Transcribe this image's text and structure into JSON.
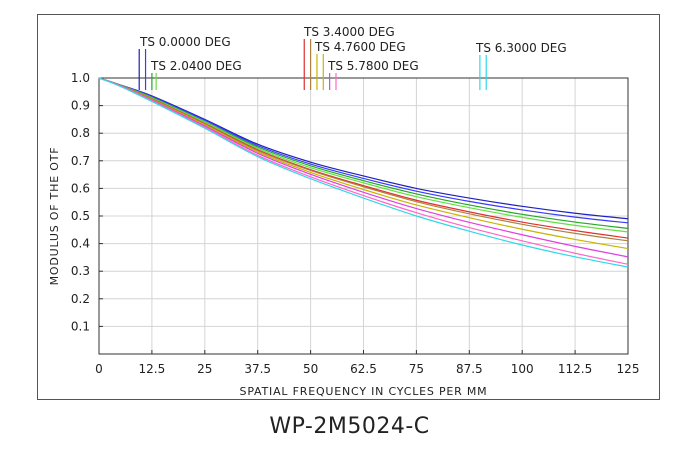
{
  "chart_data": {
    "type": "line",
    "title": "",
    "xlabel": "SPATIAL FREQUENCY IN CYCLES PER MM",
    "ylabel": "MODULUS OF THE OTF",
    "xlim": [
      0,
      125
    ],
    "ylim": [
      0,
      1
    ],
    "x_ticks": [
      "0",
      "12.5",
      "25",
      "37.5",
      "50",
      "62.5",
      "75",
      "87.5",
      "100",
      "112.5",
      "125"
    ],
    "y_ticks": [
      "0.1",
      "0.2",
      "0.3",
      "0.4",
      "0.5",
      "0.6",
      "0.7",
      "0.8",
      "0.9",
      "1.0"
    ],
    "grid": true,
    "x": [
      0,
      5,
      12.5,
      25,
      37.5,
      50,
      62.5,
      75,
      87.5,
      100,
      112.5,
      125
    ],
    "series": [
      {
        "color": "#1f1fbf",
        "values": [
          1.0,
          0.975,
          0.935,
          0.85,
          0.76,
          0.695,
          0.645,
          0.6,
          0.565,
          0.535,
          0.51,
          0.49
        ]
      },
      {
        "color": "#3a3aff",
        "values": [
          1.0,
          0.975,
          0.933,
          0.847,
          0.755,
          0.688,
          0.636,
          0.59,
          0.553,
          0.522,
          0.496,
          0.475
        ]
      },
      {
        "color": "#22aa22",
        "values": [
          1.0,
          0.974,
          0.93,
          0.842,
          0.75,
          0.682,
          0.628,
          0.58,
          0.54,
          0.506,
          0.478,
          0.455
        ]
      },
      {
        "color": "#66dd44",
        "values": [
          1.0,
          0.974,
          0.928,
          0.84,
          0.745,
          0.675,
          0.62,
          0.57,
          0.53,
          0.495,
          0.466,
          0.442
        ]
      },
      {
        "color": "#e03030",
        "values": [
          1.0,
          0.973,
          0.925,
          0.835,
          0.74,
          0.668,
          0.61,
          0.557,
          0.515,
          0.478,
          0.447,
          0.42
        ]
      },
      {
        "color": "#b08040",
        "values": [
          1.0,
          0.973,
          0.924,
          0.833,
          0.737,
          0.665,
          0.606,
          0.552,
          0.508,
          0.47,
          0.437,
          0.41
        ]
      },
      {
        "color": "#c8b400",
        "values": [
          1.0,
          0.972,
          0.922,
          0.83,
          0.732,
          0.658,
          0.596,
          0.54,
          0.494,
          0.452,
          0.415,
          0.382
        ]
      },
      {
        "color": "#e040e0",
        "values": [
          1.0,
          0.972,
          0.92,
          0.826,
          0.727,
          0.651,
          0.586,
          0.527,
          0.477,
          0.432,
          0.39,
          0.352
        ]
      },
      {
        "color": "#ff66cc",
        "values": [
          1.0,
          0.971,
          0.918,
          0.822,
          0.72,
          0.642,
          0.574,
          0.512,
          0.458,
          0.41,
          0.365,
          0.325
        ]
      },
      {
        "color": "#30d8e8",
        "values": [
          1.0,
          0.97,
          0.915,
          0.818,
          0.715,
          0.635,
          0.565,
          0.5,
          0.445,
          0.395,
          0.352,
          0.315
        ]
      }
    ],
    "annotations": [
      {
        "label": "TS  0.0000 DEG",
        "x_lines": [
          9.5,
          11
        ],
        "colors": [
          "#1f1fbf",
          "#3a3aff"
        ]
      },
      {
        "label": "TS  2.0400 DEG",
        "x_lines": [
          12.5,
          13.5
        ],
        "colors": [
          "#22aa22",
          "#66dd44"
        ]
      },
      {
        "label": "TS  3.4000 DEG",
        "x_lines": [
          48.5,
          50
        ],
        "colors": [
          "#e03030",
          "#b08040"
        ]
      },
      {
        "label": "TS  4.7600 DEG",
        "x_lines": [
          51.5,
          53
        ],
        "colors": [
          "#c8b400",
          "#c8b400"
        ]
      },
      {
        "label": "TS  5.7800 DEG",
        "x_lines": [
          54.5,
          56
        ],
        "colors": [
          "#e040e0",
          "#ff66cc"
        ]
      },
      {
        "label": "TS  6.3000 DEG",
        "x_lines": [
          90,
          91.5
        ],
        "colors": [
          "#30d8e8",
          "#30d8e8"
        ]
      }
    ]
  },
  "caption": "WP-2M5024-C"
}
